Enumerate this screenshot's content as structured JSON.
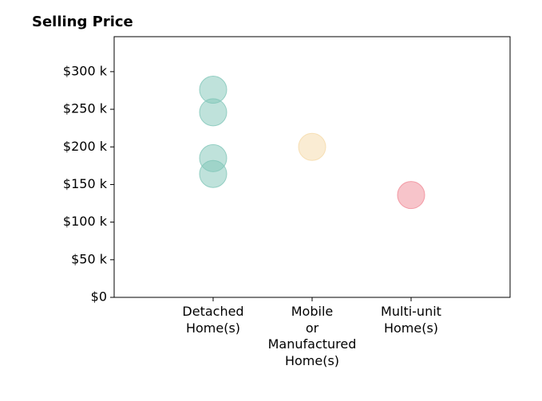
{
  "chart_data": {
    "type": "scatter",
    "title": "Selling Price",
    "categories": [
      "Detached\nHome(s)",
      "Mobile\nor\nManufactured\nHome(s)",
      "Multi-unit\nHome(s)"
    ],
    "values": [
      [
        276000,
        246000,
        185000,
        164000
      ],
      [
        200000
      ],
      [
        136000
      ]
    ],
    "colors": [
      "#7fc5b8",
      "#f5d9a8",
      "#f08a96"
    ],
    "ylim": [
      0,
      346500
    ],
    "yticks": [
      {
        "value": 0,
        "label": "$0"
      },
      {
        "value": 50000,
        "label": "$50 k"
      },
      {
        "value": 100000,
        "label": "$100 k"
      },
      {
        "value": 150000,
        "label": "$150 k"
      },
      {
        "value": 200000,
        "label": "$200 k"
      },
      {
        "value": 250000,
        "label": "$250 k"
      },
      {
        "value": 300000,
        "label": "$300 k"
      }
    ],
    "grid": false
  }
}
